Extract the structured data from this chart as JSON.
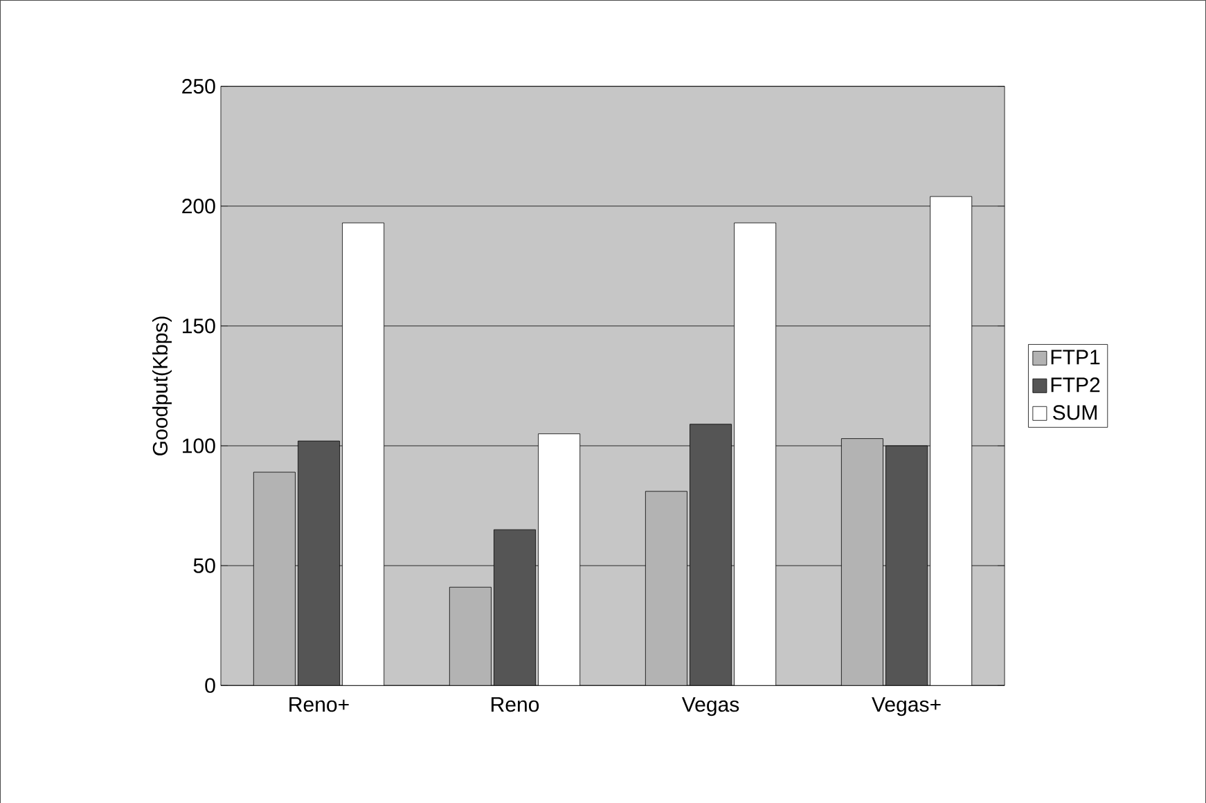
{
  "chart_data": {
    "type": "bar",
    "ylabel": "Goodput(Kbps)",
    "categories": [
      "Reno+",
      "Reno",
      "Vegas",
      "Vegas+"
    ],
    "series": [
      {
        "name": "FTP1",
        "color": "#b3b3b3",
        "values": [
          89,
          41,
          81,
          103
        ]
      },
      {
        "name": "FTP2",
        "color": "#555555",
        "values": [
          102,
          65,
          109,
          100
        ]
      },
      {
        "name": "SUM",
        "color": "#ffffff",
        "values": [
          193,
          105,
          193,
          204
        ]
      }
    ],
    "ylim": [
      0,
      250
    ],
    "yticks": [
      0,
      50,
      100,
      150,
      200,
      250
    ],
    "grid": "y",
    "legend": "right"
  }
}
